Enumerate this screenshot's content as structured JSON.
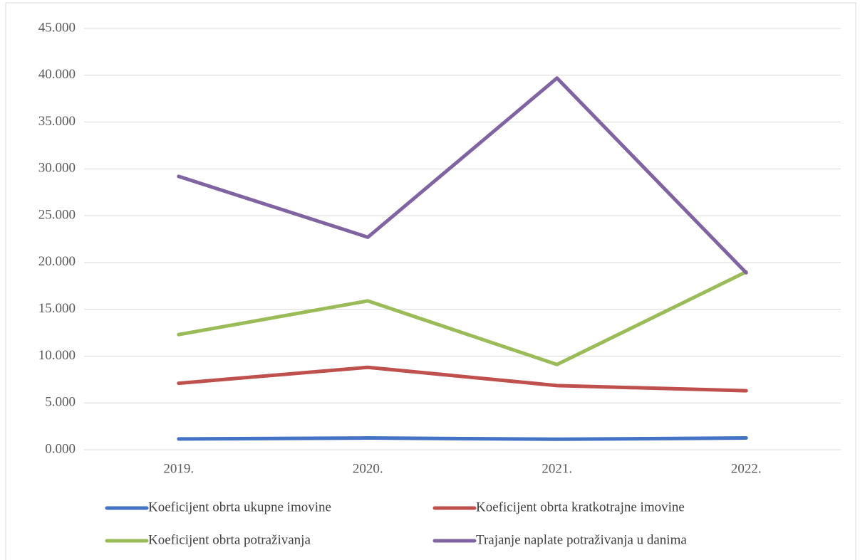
{
  "chart_data": {
    "type": "line",
    "categories": [
      "2019.",
      "2020.",
      "2021.",
      "2022."
    ],
    "series": [
      {
        "name": "Koeficijent obrta ukupne imovine",
        "color": "#4472c4",
        "values": [
          1.15,
          1.25,
          1.12,
          1.25
        ]
      },
      {
        "name": "Koeficijent obrta kratkotrajne imovine",
        "color": "#c0504d",
        "values": [
          7.1,
          8.8,
          6.85,
          6.3
        ]
      },
      {
        "name": "Koeficijent obrta potraživanja",
        "color": "#9bbb59",
        "values": [
          12.3,
          15.9,
          9.1,
          19.0
        ]
      },
      {
        "name": "Trajanje naplate potraživanja u danima",
        "color": "#8064a2",
        "values": [
          29.2,
          22.7,
          39.7,
          18.9
        ]
      }
    ],
    "ylim": [
      0,
      45
    ],
    "yticks": [
      {
        "value": 0,
        "label": "0.000"
      },
      {
        "value": 5,
        "label": "5.000"
      },
      {
        "value": 10,
        "label": "10.000"
      },
      {
        "value": 15,
        "label": "15.000"
      },
      {
        "value": 20,
        "label": "20.000"
      },
      {
        "value": 25,
        "label": "25.000"
      },
      {
        "value": 30,
        "label": "30.000"
      },
      {
        "value": 35,
        "label": "35.000"
      },
      {
        "value": 40,
        "label": "40.000"
      },
      {
        "value": 45,
        "label": "45.000"
      }
    ],
    "grid": true,
    "legend": "bottom"
  }
}
